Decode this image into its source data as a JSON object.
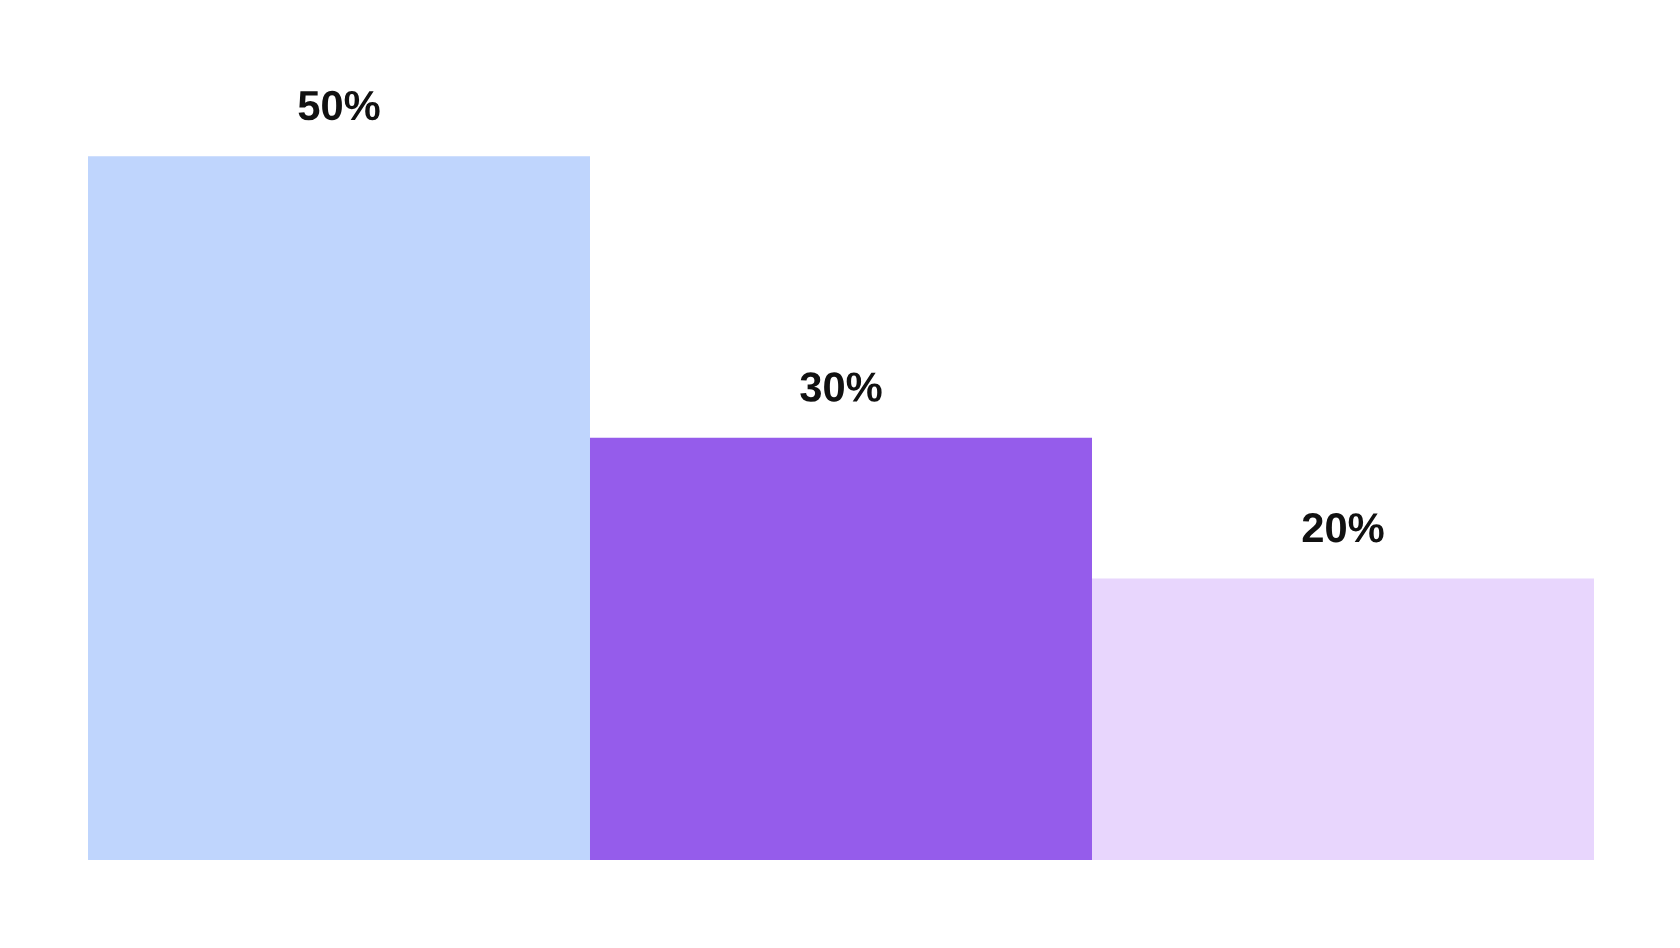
{
  "chart_data": {
    "type": "bar",
    "categories": [
      null,
      null,
      null
    ],
    "values": [
      50,
      30,
      20
    ],
    "colors": [
      "#bfd5fd",
      "#955ceb",
      "#e8d6fd"
    ],
    "value_labels": [
      "50%",
      "30%",
      "20%"
    ],
    "grid": false,
    "legend": false
  }
}
